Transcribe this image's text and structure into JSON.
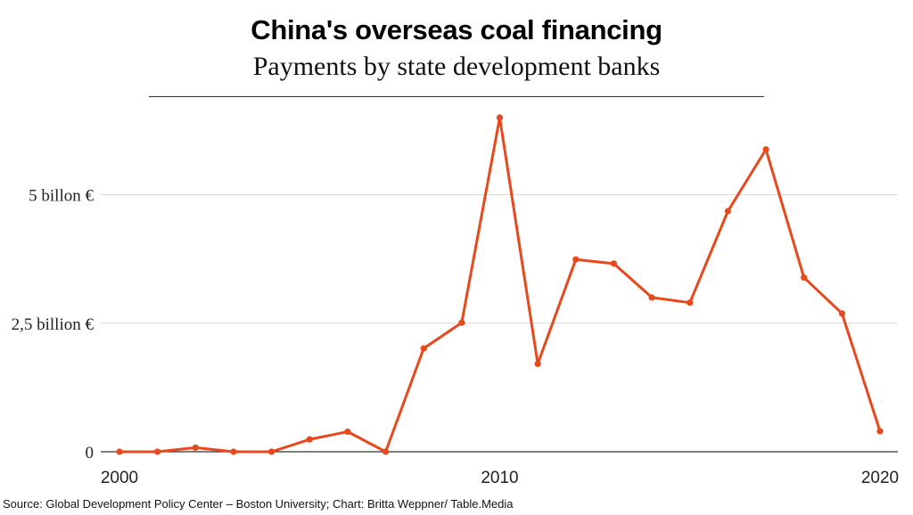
{
  "chart_data": {
    "type": "line",
    "title": "China's overseas coal financing",
    "subtitle": "Payments by state development banks",
    "source": "Source: Global Development Policy Center – Boston University; Chart: Britta Weppner/ Table.Media",
    "xlabel": "",
    "ylabel": "",
    "xlim": [
      2000,
      2020
    ],
    "ylim": [
      0,
      6.5
    ],
    "y_unit": "billion €",
    "y_ticks": [
      {
        "value": 0,
        "label": "0"
      },
      {
        "value": 2.5,
        "label": "2,5 billion €"
      },
      {
        "value": 5,
        "label": "5 billon €"
      }
    ],
    "x_ticks": [
      {
        "value": 2000,
        "label": "2000"
      },
      {
        "value": 2010,
        "label": "2010"
      },
      {
        "value": 2020,
        "label": "2020"
      }
    ],
    "grid": "horizontal",
    "series": [
      {
        "color": "#e8481c",
        "x": [
          2000,
          2001,
          2002,
          2003,
          2004,
          2005,
          2006,
          2007,
          2008,
          2009,
          2010,
          2011,
          2012,
          2013,
          2014,
          2015,
          2016,
          2017,
          2018,
          2019,
          2020
        ],
        "values": [
          0,
          0,
          0.08,
          0,
          0,
          0.24,
          0.39,
          0,
          2.01,
          2.51,
          6.5,
          1.71,
          3.74,
          3.66,
          3.0,
          2.9,
          4.68,
          5.88,
          3.39,
          2.69,
          0.4
        ]
      }
    ]
  }
}
